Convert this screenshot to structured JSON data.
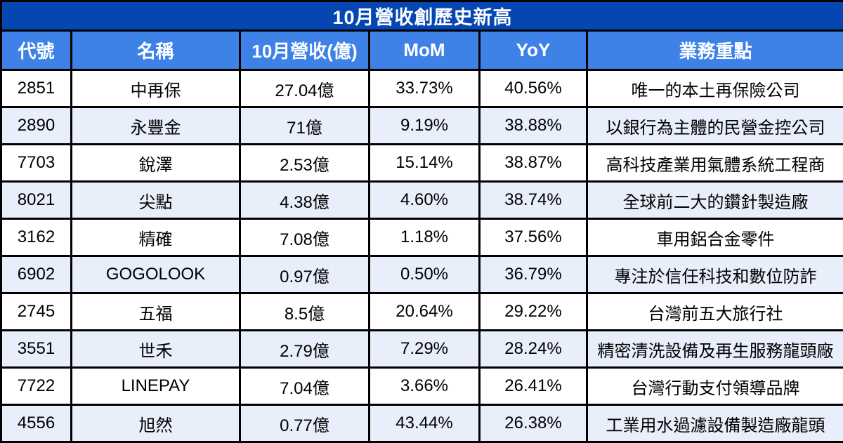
{
  "title": "10月營收創歷史新高",
  "colors": {
    "title_bg": "#0546b2",
    "header_bg": "#3e82e8",
    "header_text": "#ffffff",
    "row_bg": "#ffffff",
    "row_alt_bg": "#e9eefb",
    "body_text": "#000000",
    "border": "#000000"
  },
  "chart_data": {
    "type": "table",
    "title": "10月營收創歷史新高",
    "columns": [
      "代號",
      "名稱",
      "10月營收(億)",
      "MoM",
      "YoY",
      "業務重點"
    ],
    "rows": [
      {
        "code": "2851",
        "name": "中再保",
        "revenue": "27.04億",
        "mom": "33.73%",
        "yoy": "40.56%",
        "highlight": "唯一的本土再保險公司"
      },
      {
        "code": "2890",
        "name": "永豐金",
        "revenue": "71億",
        "mom": "9.19%",
        "yoy": "38.88%",
        "highlight": "以銀行為主體的民營金控公司"
      },
      {
        "code": "7703",
        "name": "銳澤",
        "revenue": "2.53億",
        "mom": "15.14%",
        "yoy": "38.87%",
        "highlight": "高科技產業用氣體系統工程商"
      },
      {
        "code": "8021",
        "name": "尖點",
        "revenue": "4.38億",
        "mom": "4.60%",
        "yoy": "38.74%",
        "highlight": "全球前二大的鑽針製造廠"
      },
      {
        "code": "3162",
        "name": "精確",
        "revenue": "7.08億",
        "mom": "1.18%",
        "yoy": "37.56%",
        "highlight": "車用鋁合金零件"
      },
      {
        "code": "6902",
        "name": "GOGOLOOK",
        "revenue": "0.97億",
        "mom": "0.50%",
        "yoy": "36.79%",
        "highlight": "專注於信任科技和數位防詐"
      },
      {
        "code": "2745",
        "name": "五福",
        "revenue": "8.5億",
        "mom": "20.64%",
        "yoy": "29.22%",
        "highlight": "台灣前五大旅行社"
      },
      {
        "code": "3551",
        "name": "世禾",
        "revenue": "2.79億",
        "mom": "7.29%",
        "yoy": "28.24%",
        "highlight": "精密清洗設備及再生服務龍頭廠"
      },
      {
        "code": "7722",
        "name": "LINEPAY",
        "revenue": "7.04億",
        "mom": "3.66%",
        "yoy": "26.41%",
        "highlight": "台灣行動支付領導品牌"
      },
      {
        "code": "4556",
        "name": "旭然",
        "revenue": "0.77億",
        "mom": "43.44%",
        "yoy": "26.38%",
        "highlight": "工業用水過濾設備製造廠龍頭"
      }
    ]
  }
}
